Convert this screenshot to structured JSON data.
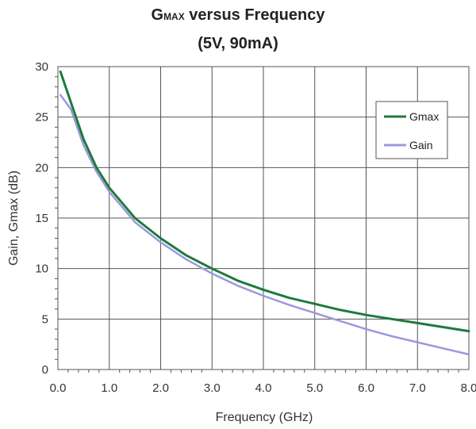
{
  "title": {
    "main": "G",
    "sub": "MAX",
    "rest": " versus Frequency",
    "line2": "(5V, 90mA)"
  },
  "chart_data": {
    "type": "line",
    "xlabel": "Frequency (GHz)",
    "ylabel": "Gain, Gmax (dB)",
    "xlim": [
      0,
      8
    ],
    "ylim": [
      0,
      30
    ],
    "x_ticks": [
      "0.0",
      "1.0",
      "2.0",
      "3.0",
      "4.0",
      "5.0",
      "6.0",
      "7.0",
      "8.0"
    ],
    "y_ticks": [
      "0",
      "5",
      "10",
      "15",
      "20",
      "25",
      "30"
    ],
    "grid": true,
    "legend_position": "top-right",
    "series": [
      {
        "name": "Gmax",
        "color": "#1f7a3c",
        "points": [
          [
            0.05,
            29.5
          ],
          [
            0.25,
            26.5
          ],
          [
            0.5,
            22.8
          ],
          [
            0.75,
            20.0
          ],
          [
            1.0,
            18.0
          ],
          [
            1.5,
            15.0
          ],
          [
            2.0,
            13.0
          ],
          [
            2.5,
            11.3
          ],
          [
            3.0,
            10.0
          ],
          [
            3.5,
            8.8
          ],
          [
            4.0,
            7.9
          ],
          [
            4.5,
            7.1
          ],
          [
            5.0,
            6.5
          ],
          [
            5.5,
            5.9
          ],
          [
            6.0,
            5.4
          ],
          [
            6.5,
            5.0
          ],
          [
            7.0,
            4.6
          ],
          [
            7.5,
            4.2
          ],
          [
            8.0,
            3.8
          ]
        ]
      },
      {
        "name": "Gain",
        "color": "#9999dd",
        "points": [
          [
            0.05,
            27.2
          ],
          [
            0.25,
            25.8
          ],
          [
            0.5,
            22.2
          ],
          [
            0.75,
            19.6
          ],
          [
            1.0,
            17.6
          ],
          [
            1.5,
            14.6
          ],
          [
            2.0,
            12.6
          ],
          [
            2.5,
            10.9
          ],
          [
            3.0,
            9.5
          ],
          [
            3.5,
            8.3
          ],
          [
            4.0,
            7.3
          ],
          [
            4.5,
            6.4
          ],
          [
            5.0,
            5.6
          ],
          [
            5.5,
            4.8
          ],
          [
            6.0,
            4.0
          ],
          [
            6.5,
            3.3
          ],
          [
            7.0,
            2.7
          ],
          [
            7.5,
            2.1
          ],
          [
            8.0,
            1.5
          ]
        ]
      }
    ]
  }
}
